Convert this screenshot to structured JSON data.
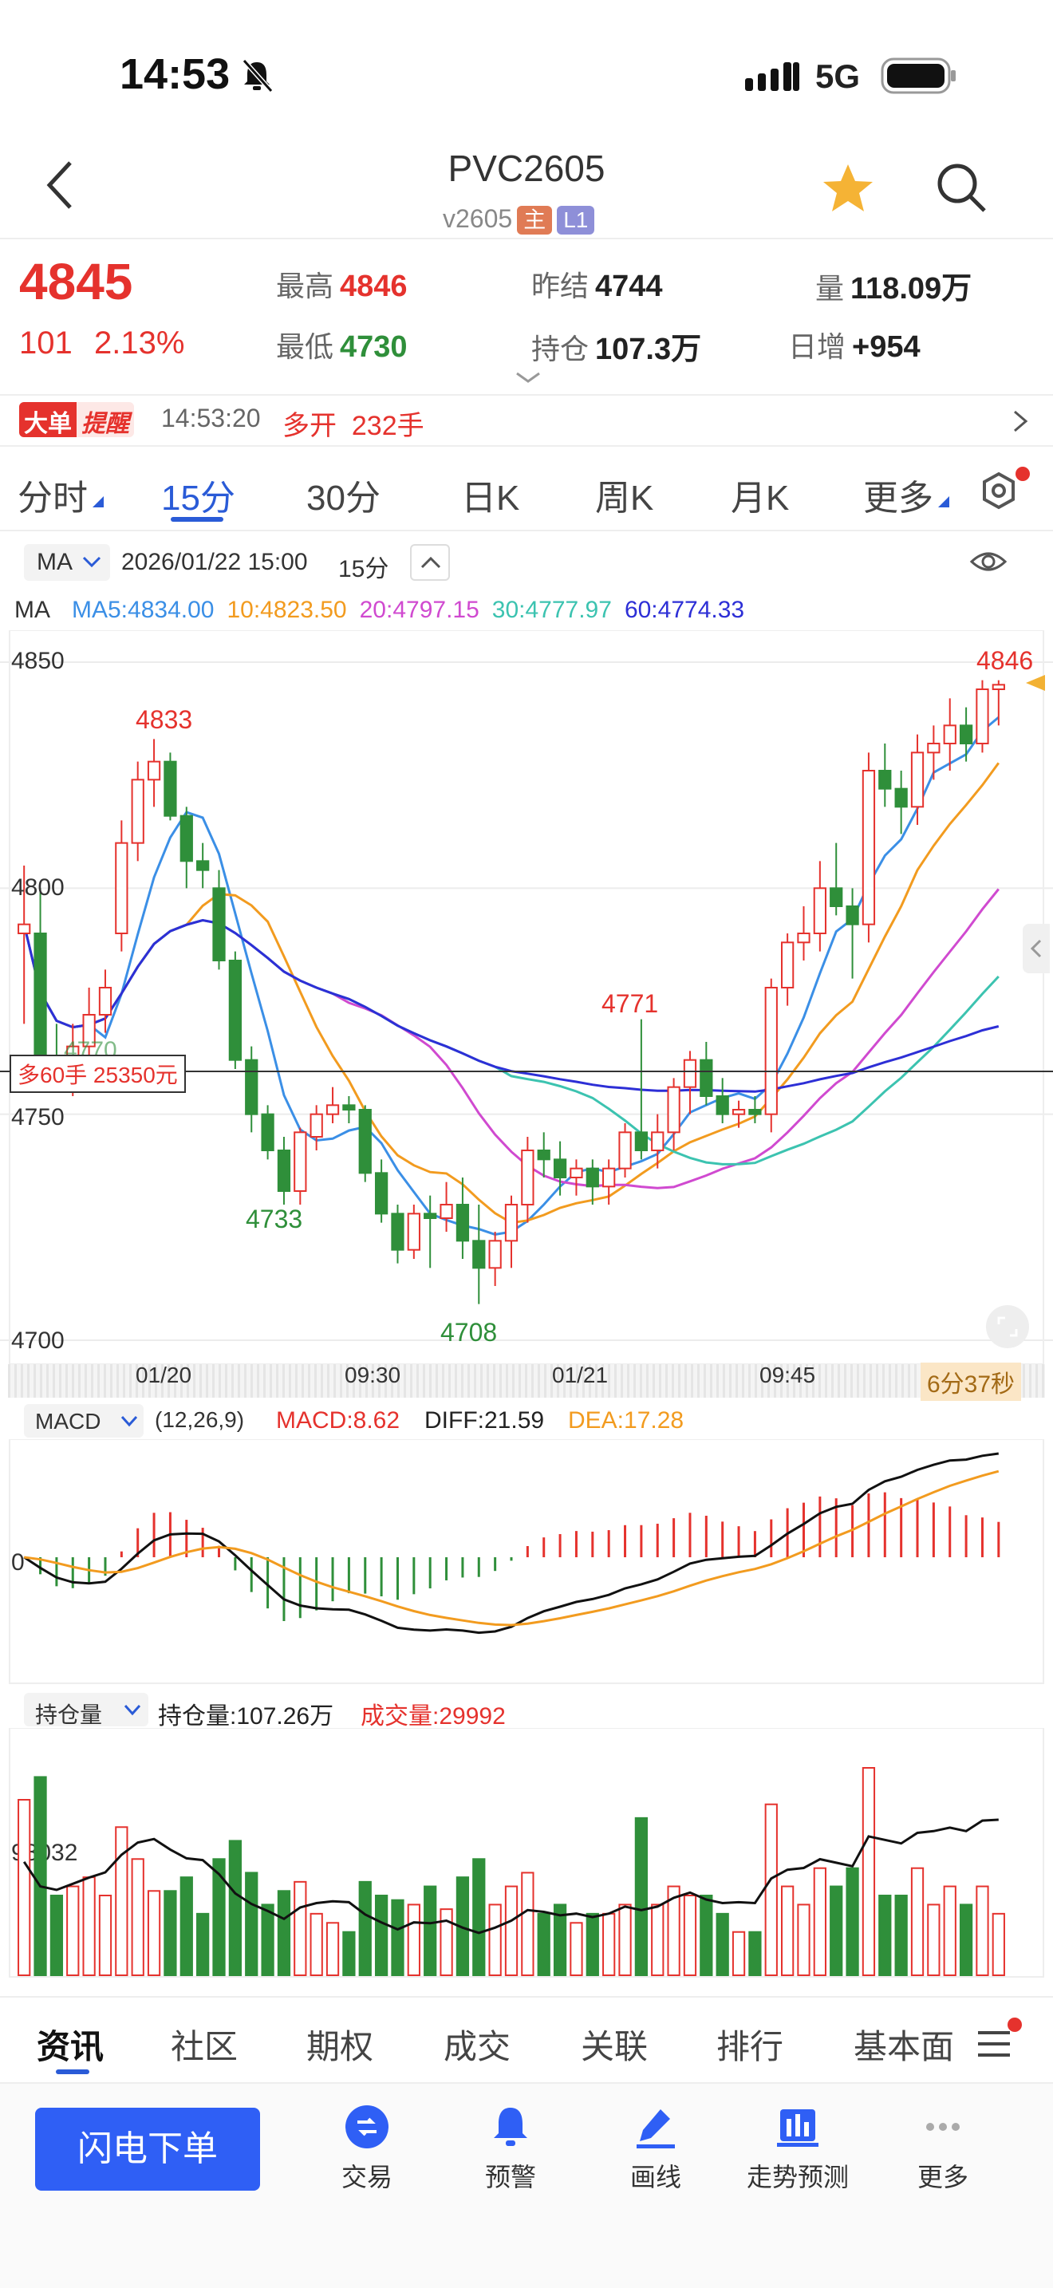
{
  "status_bar": {
    "time": "14:53",
    "network": "5G"
  },
  "nav": {
    "title": "PVC2605",
    "subtitle": "v2605",
    "badge_main": "主",
    "badge_l1": "L1"
  },
  "quote": {
    "last": "4845",
    "change": "101",
    "change_pct": "2.13%",
    "high_label": "最高",
    "high": "4846",
    "low_label": "最低",
    "low": "4730",
    "prev_settle_label": "昨结",
    "prev_settle": "4744",
    "oi_label": "持仓",
    "oi": "107.3万",
    "volume_label": "量",
    "volume": "118.09万",
    "daily_inc_label": "日增",
    "daily_inc": "+954"
  },
  "alert": {
    "tag1": "大单",
    "tag2": "提醒",
    "time": "14:53:20",
    "text": "多开  232手"
  },
  "period_tabs": [
    "分时",
    "15分",
    "30分",
    "日K",
    "周K",
    "月K",
    "更多"
  ],
  "active_period": "15分",
  "chart_toolbar": {
    "indicator": "MA",
    "datetime": "2026/01/22 15:00",
    "period": "15分"
  },
  "ma_legend": {
    "title": "MA",
    "items": [
      {
        "label": "MA5:4834.00",
        "color": "#3b8fe6"
      },
      {
        "label": "10:4823.50",
        "color": "#f29b1f"
      },
      {
        "label": "20:4797.15",
        "color": "#d04ad0"
      },
      {
        "label": "30:4777.97",
        "color": "#3cc3b0"
      },
      {
        "label": "60:4774.33",
        "color": "#2d2fd6"
      }
    ]
  },
  "price_axis": [
    "4850",
    "4800",
    "4750",
    "4700"
  ],
  "price_annotations": {
    "a4833": "4833",
    "a4733": "4733",
    "a4708": "4708",
    "a4771": "4771",
    "a4846": "4846",
    "a4770": "4770"
  },
  "position_tag": "多60手 25350元",
  "time_axis": [
    "01/20",
    "09:30",
    "01/21",
    "09:45"
  ],
  "countdown": "6分37秒",
  "macd": {
    "name": "MACD",
    "params": "(12,26,9)",
    "macd": "MACD:8.62",
    "diff": "DIFF:21.59",
    "dea": "DEA:17.28",
    "zero": "0"
  },
  "oi_panel": {
    "name": "持仓量",
    "oi": "持仓量:107.26万",
    "vol": "成交量:29992",
    "axis": "98032"
  },
  "bottom_tabs": [
    "资讯",
    "社区",
    "期权",
    "成交",
    "关联",
    "排行",
    "基本面"
  ],
  "bottom_nav": [
    {
      "label": "交易",
      "icon": "trade-icon"
    },
    {
      "label": "预警",
      "icon": "bell-icon"
    },
    {
      "label": "画线",
      "icon": "pen-icon"
    },
    {
      "label": "走势预测",
      "icon": "forecast-icon"
    },
    {
      "label": "更多",
      "icon": "more-icon"
    }
  ],
  "flash_button": "闪电下单",
  "colors": {
    "up": "#e5322d",
    "down": "#2f8f3a",
    "accent": "#2a5bd7"
  },
  "chart_data": {
    "type": "candlestick",
    "ylim": [
      4700,
      4850
    ],
    "ohlc": [
      [
        4790,
        4805,
        4770,
        4792
      ],
      [
        4790,
        4800,
        4760,
        4762
      ],
      [
        4762,
        4770,
        4756,
        4758
      ],
      [
        4758,
        4770,
        4754,
        4765
      ],
      [
        4765,
        4778,
        4760,
        4772
      ],
      [
        4772,
        4782,
        4768,
        4778
      ],
      [
        4790,
        4815,
        4786,
        4810
      ],
      [
        4810,
        4828,
        4806,
        4824
      ],
      [
        4824,
        4833,
        4818,
        4828
      ],
      [
        4828,
        4830,
        4815,
        4816
      ],
      [
        4816,
        4818,
        4800,
        4806
      ],
      [
        4806,
        4810,
        4800,
        4804
      ],
      [
        4800,
        4804,
        4782,
        4784
      ],
      [
        4784,
        4786,
        4760,
        4762
      ],
      [
        4762,
        4765,
        4746,
        4750
      ],
      [
        4750,
        4752,
        4740,
        4742
      ],
      [
        4742,
        4745,
        4730,
        4733
      ],
      [
        4733,
        4747,
        4730,
        4746
      ],
      [
        4745,
        4752,
        4742,
        4750
      ],
      [
        4750,
        4756,
        4748,
        4752
      ],
      [
        4752,
        4754,
        4748,
        4751
      ],
      [
        4751,
        4752,
        4735,
        4737
      ],
      [
        4737,
        4740,
        4726,
        4728
      ],
      [
        4728,
        4730,
        4717,
        4720
      ],
      [
        4720,
        4730,
        4718,
        4728
      ],
      [
        4728,
        4732,
        4716,
        4727
      ],
      [
        4727,
        4735,
        4724,
        4730
      ],
      [
        4730,
        4736,
        4718,
        4722
      ],
      [
        4722,
        4730,
        4708,
        4716
      ],
      [
        4716,
        4724,
        4712,
        4722
      ],
      [
        4722,
        4732,
        4716,
        4730
      ],
      [
        4730,
        4745,
        4726,
        4742
      ],
      [
        4742,
        4746,
        4736,
        4740
      ],
      [
        4740,
        4744,
        4732,
        4736
      ],
      [
        4736,
        4740,
        4732,
        4738
      ],
      [
        4738,
        4740,
        4730,
        4734
      ],
      [
        4734,
        4740,
        4730,
        4738
      ],
      [
        4738,
        4748,
        4736,
        4746
      ],
      [
        4746,
        4771,
        4740,
        4742
      ],
      [
        4742,
        4750,
        4738,
        4746
      ],
      [
        4746,
        4758,
        4742,
        4756
      ],
      [
        4756,
        4764,
        4750,
        4762
      ],
      [
        4762,
        4766,
        4752,
        4754
      ],
      [
        4754,
        4758,
        4748,
        4750
      ],
      [
        4750,
        4753,
        4747,
        4751
      ],
      [
        4751,
        4754,
        4748,
        4750
      ],
      [
        4750,
        4780,
        4746,
        4778
      ],
      [
        4778,
        4790,
        4774,
        4788
      ],
      [
        4788,
        4796,
        4784,
        4790
      ],
      [
        4790,
        4806,
        4786,
        4800
      ],
      [
        4800,
        4810,
        4794,
        4796
      ],
      [
        4796,
        4800,
        4780,
        4792
      ],
      [
        4792,
        4830,
        4788,
        4826
      ],
      [
        4826,
        4832,
        4818,
        4822
      ],
      [
        4822,
        4826,
        4812,
        4818
      ],
      [
        4818,
        4834,
        4814,
        4830
      ],
      [
        4830,
        4836,
        4824,
        4832
      ],
      [
        4832,
        4842,
        4826,
        4836
      ],
      [
        4836,
        4840,
        4828,
        4832
      ],
      [
        4832,
        4846,
        4830,
        4844
      ],
      [
        4844,
        4846,
        4836,
        4845
      ]
    ]
  }
}
